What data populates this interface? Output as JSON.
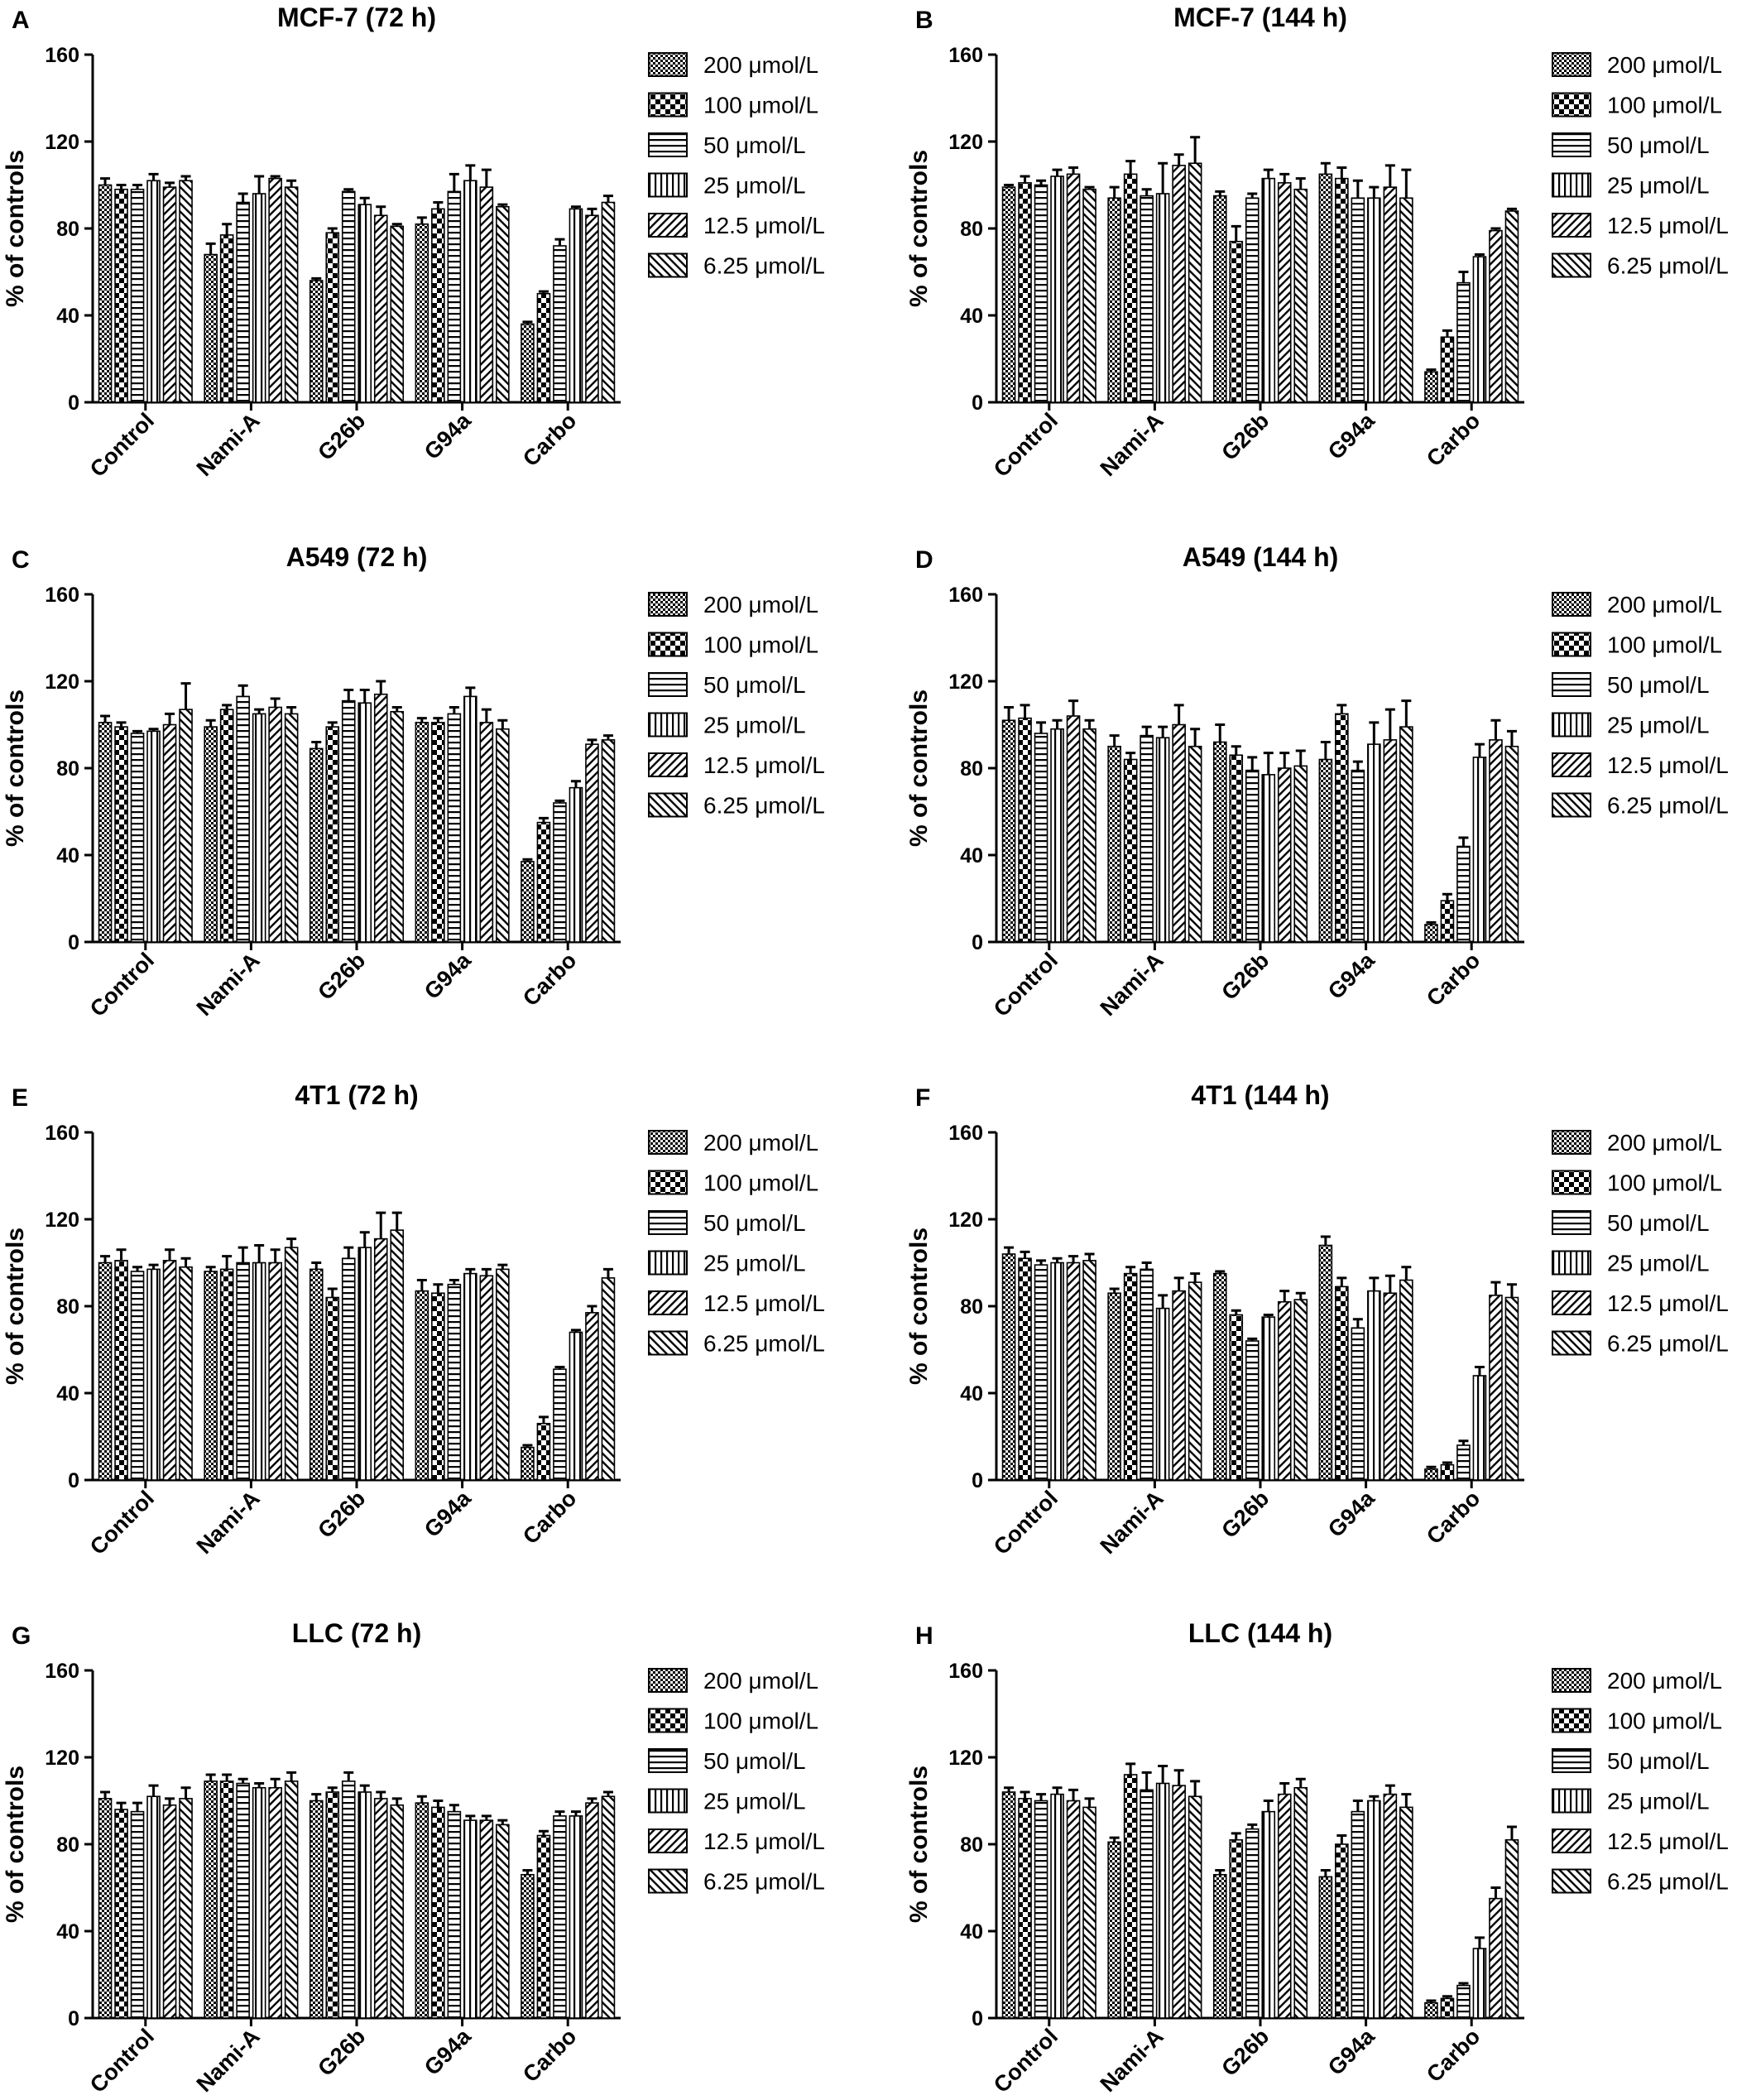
{
  "figure": {
    "legend_entries": [
      "200 μmol/L",
      "100 μmol/L",
      "50 μmol/L",
      "25 μmol/L",
      "12.5 μmol/L",
      "6.25 μmol/L"
    ],
    "patterns": [
      "dense-check",
      "large-check",
      "horizontal-lines",
      "vertical-lines",
      "diagonal-up",
      "diagonal-down"
    ]
  },
  "chart_data": [
    {
      "type": "bar",
      "panel_letter": "A",
      "title": "MCF-7 (72  h)",
      "ylabel": "% of controls",
      "ylim": [
        0,
        160
      ],
      "yticks": [
        0,
        40,
        80,
        120,
        160
      ],
      "categories": [
        "Control",
        "Nami-A",
        "G26b",
        "G94a",
        "Carbo"
      ],
      "series": [
        {
          "name": "200 μmol/L",
          "values": [
            100,
            68,
            56,
            82,
            36
          ],
          "errors": [
            3,
            5,
            1,
            3,
            1
          ]
        },
        {
          "name": "100 μmol/L",
          "values": [
            98,
            77,
            78,
            89,
            50
          ],
          "errors": [
            2,
            5,
            2,
            3,
            1
          ]
        },
        {
          "name": "50 μmol/L",
          "values": [
            98,
            92,
            97,
            97,
            72
          ],
          "errors": [
            2,
            4,
            1,
            8,
            3
          ]
        },
        {
          "name": "25 μmol/L",
          "values": [
            102,
            96,
            91,
            102,
            89
          ],
          "errors": [
            3,
            8,
            3,
            7,
            1
          ]
        },
        {
          "name": "12.5 μmol/L",
          "values": [
            99,
            103,
            86,
            99,
            86
          ],
          "errors": [
            2,
            1,
            4,
            8,
            3
          ]
        },
        {
          "name": "6.25 μmol/L",
          "values": [
            102,
            99,
            81,
            90,
            92
          ],
          "errors": [
            2,
            3,
            1,
            1,
            3
          ]
        }
      ]
    },
    {
      "type": "bar",
      "panel_letter": "B",
      "title": "MCF-7 (144 h)",
      "ylabel": "% of controls",
      "ylim": [
        0,
        160
      ],
      "yticks": [
        0,
        40,
        80,
        120,
        160
      ],
      "categories": [
        "Control",
        "Nami-A",
        "G26b",
        "G94a",
        "Carbo"
      ],
      "series": [
        {
          "name": "200 μmol/L",
          "values": [
            99,
            94,
            95,
            105,
            14
          ],
          "errors": [
            1,
            5,
            2,
            5,
            1
          ]
        },
        {
          "name": "100 μmol/L",
          "values": [
            101,
            105,
            74,
            103,
            30
          ],
          "errors": [
            3,
            6,
            7,
            5,
            3
          ]
        },
        {
          "name": "50 μmol/L",
          "values": [
            100,
            95,
            94,
            94,
            55
          ],
          "errors": [
            2,
            3,
            2,
            8,
            5
          ]
        },
        {
          "name": "25 μmol/L",
          "values": [
            104,
            96,
            103,
            94,
            67
          ],
          "errors": [
            3,
            14,
            4,
            5,
            1
          ]
        },
        {
          "name": "12.5 μmol/L",
          "values": [
            105,
            109,
            101,
            99,
            79
          ],
          "errors": [
            3,
            5,
            4,
            10,
            1
          ]
        },
        {
          "name": "6.25 μmol/L",
          "values": [
            98,
            110,
            98,
            94,
            88
          ],
          "errors": [
            1,
            12,
            5,
            13,
            1
          ]
        }
      ]
    },
    {
      "type": "bar",
      "panel_letter": "C",
      "title": "A549 (72 h)",
      "ylabel": "% of controls",
      "ylim": [
        0,
        160
      ],
      "yticks": [
        0,
        40,
        80,
        120,
        160
      ],
      "categories": [
        "Control",
        "Nami-A",
        "G26b",
        "G94a",
        "Carbo"
      ],
      "series": [
        {
          "name": "200 μmol/L",
          "values": [
            101,
            99,
            89,
            101,
            37
          ],
          "errors": [
            3,
            3,
            3,
            2,
            1
          ]
        },
        {
          "name": "100 μmol/L",
          "values": [
            99,
            107,
            99,
            101,
            55
          ],
          "errors": [
            2,
            2,
            2,
            2,
            2
          ]
        },
        {
          "name": "50 μmol/L",
          "values": [
            96,
            113,
            111,
            105,
            64
          ],
          "errors": [
            1,
            5,
            5,
            3,
            1
          ]
        },
        {
          "name": "25 μmol/L",
          "values": [
            97,
            105,
            110,
            113,
            71
          ],
          "errors": [
            1,
            2,
            6,
            4,
            3
          ]
        },
        {
          "name": "12.5 μmol/L",
          "values": [
            100,
            108,
            114,
            101,
            91
          ],
          "errors": [
            5,
            4,
            6,
            6,
            2
          ]
        },
        {
          "name": "6.25 μmol/L",
          "values": [
            107,
            105,
            106,
            98,
            93
          ],
          "errors": [
            12,
            3,
            2,
            4,
            2
          ]
        }
      ]
    },
    {
      "type": "bar",
      "panel_letter": "D",
      "title": "A549 (144 h)",
      "ylabel": "% of controls",
      "ylim": [
        0,
        160
      ],
      "yticks": [
        0,
        40,
        80,
        120,
        160
      ],
      "categories": [
        "Control",
        "Nami-A",
        "G26b",
        "G94a",
        "Carbo"
      ],
      "series": [
        {
          "name": "200 μmol/L",
          "values": [
            102,
            90,
            92,
            84,
            8
          ],
          "errors": [
            6,
            5,
            8,
            8,
            1
          ]
        },
        {
          "name": "100 μmol/L",
          "values": [
            103,
            84,
            86,
            105,
            19
          ],
          "errors": [
            6,
            3,
            4,
            4,
            3
          ]
        },
        {
          "name": "50 μmol/L",
          "values": [
            96,
            95,
            79,
            79,
            44
          ],
          "errors": [
            5,
            4,
            6,
            4,
            4
          ]
        },
        {
          "name": "25 μmol/L",
          "values": [
            98,
            94,
            77,
            91,
            85
          ],
          "errors": [
            4,
            5,
            10,
            10,
            6
          ]
        },
        {
          "name": "12.5 μmol/L",
          "values": [
            104,
            100,
            80,
            93,
            93
          ],
          "errors": [
            7,
            9,
            7,
            14,
            9
          ]
        },
        {
          "name": "6.25 μmol/L",
          "values": [
            98,
            90,
            81,
            99,
            90
          ],
          "errors": [
            4,
            8,
            7,
            12,
            7
          ]
        }
      ]
    },
    {
      "type": "bar",
      "panel_letter": "E",
      "title": "4T1 (72 h)",
      "ylabel": "% of controls",
      "ylim": [
        0,
        160
      ],
      "yticks": [
        0,
        40,
        80,
        120,
        160
      ],
      "categories": [
        "Control",
        "Nami-A",
        "G26b",
        "G94a",
        "Carbo"
      ],
      "series": [
        {
          "name": "200 μmol/L",
          "values": [
            100,
            96,
            97,
            87,
            15
          ],
          "errors": [
            3,
            2,
            3,
            5,
            1
          ]
        },
        {
          "name": "100 μmol/L",
          "values": [
            101,
            97,
            84,
            86,
            26
          ],
          "errors": [
            5,
            6,
            4,
            4,
            3
          ]
        },
        {
          "name": "50 μmol/L",
          "values": [
            96,
            100,
            102,
            90,
            51
          ],
          "errors": [
            2,
            7,
            5,
            2,
            1
          ]
        },
        {
          "name": "25 μmol/L",
          "values": [
            97,
            100,
            107,
            95,
            68
          ],
          "errors": [
            2,
            8,
            7,
            2,
            1
          ]
        },
        {
          "name": "12.5 μmol/L",
          "values": [
            101,
            100,
            111,
            94,
            77
          ],
          "errors": [
            5,
            6,
            12,
            3,
            3
          ]
        },
        {
          "name": "6.25 μmol/L",
          "values": [
            98,
            107,
            115,
            97,
            93
          ],
          "errors": [
            4,
            4,
            8,
            2,
            4
          ]
        }
      ]
    },
    {
      "type": "bar",
      "panel_letter": "F",
      "title": "4T1 (144 h)",
      "ylabel": "% of controls",
      "ylim": [
        0,
        160
      ],
      "yticks": [
        0,
        40,
        80,
        120,
        160
      ],
      "categories": [
        "Control",
        "Nami-A",
        "G26b",
        "G94a",
        "Carbo"
      ],
      "series": [
        {
          "name": "200 μmol/L",
          "values": [
            104,
            86,
            95,
            108,
            5
          ],
          "errors": [
            3,
            2,
            1,
            4,
            1
          ]
        },
        {
          "name": "100 μmol/L",
          "values": [
            102,
            95,
            76,
            89,
            7
          ],
          "errors": [
            3,
            3,
            2,
            4,
            1
          ]
        },
        {
          "name": "50 μmol/L",
          "values": [
            99,
            97,
            64,
            70,
            16
          ],
          "errors": [
            2,
            3,
            1,
            4,
            2
          ]
        },
        {
          "name": "25 μmol/L",
          "values": [
            100,
            79,
            75,
            87,
            48
          ],
          "errors": [
            2,
            6,
            1,
            6,
            4
          ]
        },
        {
          "name": "12.5 μmol/L",
          "values": [
            100,
            87,
            82,
            86,
            85
          ],
          "errors": [
            3,
            6,
            5,
            8,
            6
          ]
        },
        {
          "name": "6.25 μmol/L",
          "values": [
            101,
            91,
            83,
            92,
            84
          ],
          "errors": [
            3,
            4,
            3,
            6,
            6
          ]
        }
      ]
    },
    {
      "type": "bar",
      "panel_letter": "G",
      "title": "LLC (72 h)",
      "ylabel": "% of controls",
      "ylim": [
        0,
        160
      ],
      "yticks": [
        0,
        40,
        80,
        120,
        160
      ],
      "categories": [
        "Control",
        "Nami-A",
        "G26b",
        "G94a",
        "Carbo"
      ],
      "series": [
        {
          "name": "200 μmol/L",
          "values": [
            101,
            109,
            100,
            99,
            66
          ],
          "errors": [
            3,
            3,
            3,
            3,
            2
          ]
        },
        {
          "name": "100 μmol/L",
          "values": [
            96,
            109,
            104,
            97,
            84
          ],
          "errors": [
            3,
            3,
            2,
            3,
            2
          ]
        },
        {
          "name": "50 μmol/L",
          "values": [
            95,
            108,
            109,
            95,
            93
          ],
          "errors": [
            4,
            2,
            4,
            3,
            2
          ]
        },
        {
          "name": "25 μmol/L",
          "values": [
            102,
            106,
            104,
            91,
            93
          ],
          "errors": [
            5,
            2,
            3,
            2,
            2
          ]
        },
        {
          "name": "12.5 μmol/L",
          "values": [
            98,
            106,
            101,
            91,
            99
          ],
          "errors": [
            3,
            4,
            3,
            2,
            2
          ]
        },
        {
          "name": "6.25 μmol/L",
          "values": [
            101,
            109,
            98,
            89,
            102
          ],
          "errors": [
            5,
            4,
            3,
            2,
            2
          ]
        }
      ]
    },
    {
      "type": "bar",
      "panel_letter": "H",
      "title": "LLC (144 h)",
      "ylabel": "% of controls",
      "ylim": [
        0,
        160
      ],
      "yticks": [
        0,
        40,
        80,
        120,
        160
      ],
      "categories": [
        "Control",
        "Nami-A",
        "G26b",
        "G94a",
        "Carbo"
      ],
      "series": [
        {
          "name": "200 μmol/L",
          "values": [
            104,
            81,
            66,
            65,
            7
          ],
          "errors": [
            2,
            2,
            2,
            3,
            1
          ]
        },
        {
          "name": "100 μmol/L",
          "values": [
            101,
            112,
            82,
            80,
            9
          ],
          "errors": [
            3,
            5,
            3,
            4,
            1
          ]
        },
        {
          "name": "50 μmol/L",
          "values": [
            100,
            105,
            87,
            95,
            15
          ],
          "errors": [
            3,
            8,
            2,
            5,
            1
          ]
        },
        {
          "name": "25 μmol/L",
          "values": [
            103,
            108,
            95,
            100,
            32
          ],
          "errors": [
            3,
            8,
            5,
            2,
            5
          ]
        },
        {
          "name": "12.5 μmol/L",
          "values": [
            100,
            107,
            103,
            103,
            55
          ],
          "errors": [
            5,
            7,
            5,
            4,
            5
          ]
        },
        {
          "name": "6.25 μmol/L",
          "values": [
            97,
            102,
            106,
            97,
            82
          ],
          "errors": [
            4,
            7,
            4,
            6,
            6
          ]
        }
      ]
    }
  ]
}
